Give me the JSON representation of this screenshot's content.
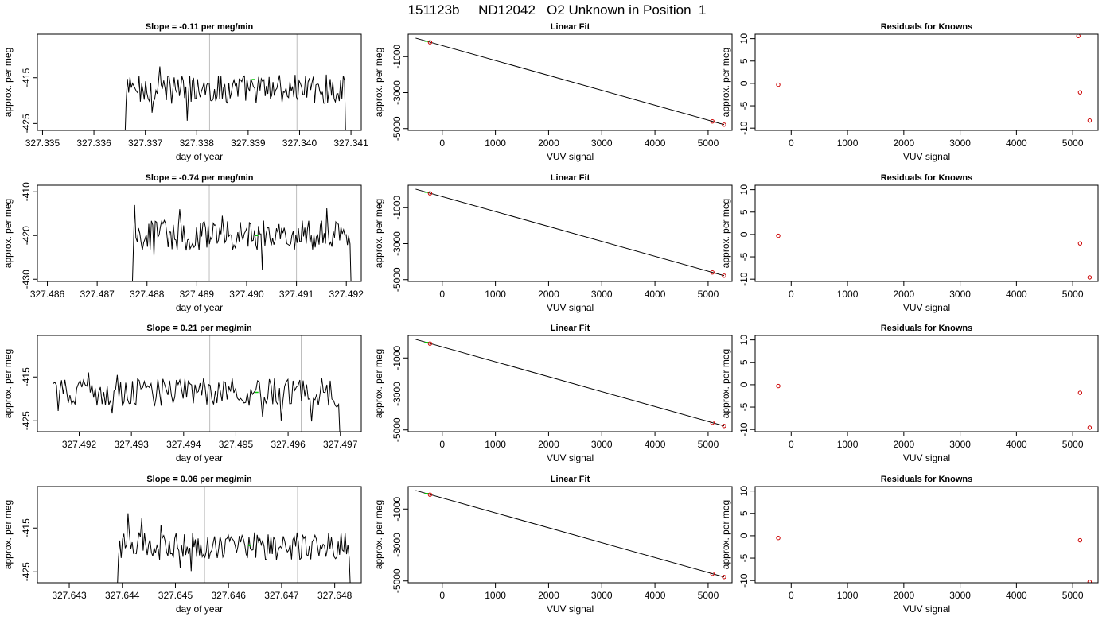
{
  "title": "151123b     ND12042   O2 Unknown in Position  1",
  "colors": {
    "line": "#000000",
    "marker_green": "#00cc00",
    "marker_red": "#cc0000",
    "vline": "#bebebe"
  },
  "chart_data": [
    {
      "type": "line",
      "row": 1,
      "title": "Slope =  -0.11  per meg/min",
      "xlabel": "day of year",
      "ylabel": "approx. per meg",
      "xlim": [
        327.3349,
        327.3412
      ],
      "xticks": [
        "327.335",
        "327.336",
        "327.337",
        "327.338",
        "327.339",
        "327.340",
        "327.341"
      ],
      "ylim": [
        -426.5,
        -405.5
      ],
      "yticks": [
        "-415",
        "-425"
      ],
      "x_start": 327.3366,
      "x_end": 327.3409,
      "baseline": -417.5,
      "amplitude": 2.0,
      "vlines": [
        327.33825,
        327.33995
      ],
      "marker": {
        "x": 327.3391,
        "y": -415.4
      }
    },
    {
      "type": "scatter",
      "row": 1,
      "title": "Linear Fit",
      "xlabel": "VUV signal",
      "ylabel": "approx. per meg",
      "xlim": [
        -640,
        5450
      ],
      "xticks": [
        "0",
        "1000",
        "2000",
        "3000",
        "4000",
        "5000"
      ],
      "ylim": [
        -5100,
        250
      ],
      "yticks": [
        "-1000",
        "-3000",
        "-5000"
      ],
      "fit": {
        "x": [
          -500,
          5300
        ],
        "y": [
          31,
          -4780
        ]
      },
      "points": [
        {
          "x": -230,
          "y": -200
        },
        {
          "x": 5080,
          "y": -4600
        },
        {
          "x": 5300,
          "y": -4780
        }
      ],
      "green_points": [
        {
          "x": -290,
          "y": -140
        }
      ]
    },
    {
      "type": "scatter",
      "row": 1,
      "title": "Residuals for Knowns",
      "xlabel": "VUV signal",
      "ylabel": "approx. per meg",
      "xlim": [
        -640,
        5450
      ],
      "xticks": [
        "0",
        "1000",
        "2000",
        "3000",
        "4000",
        "5000"
      ],
      "ylim": [
        -10.5,
        11
      ],
      "yticks": [
        "10",
        "5",
        "0",
        "-5",
        "-10"
      ],
      "points": [
        {
          "x": -230,
          "y": -0.3
        },
        {
          "x": 5100,
          "y": 10.6
        },
        {
          "x": 5130,
          "y": -2.0
        },
        {
          "x": 5300,
          "y": -8.3
        }
      ]
    },
    {
      "type": "line",
      "row": 2,
      "title": "Slope =  -0.74  per meg/min",
      "xlabel": "day of year",
      "ylabel": "approx. per meg",
      "xlim": [
        327.4858,
        327.4923
      ],
      "xticks": [
        "327.486",
        "327.487",
        "327.488",
        "327.489",
        "327.490",
        "327.491",
        "327.492"
      ],
      "ylim": [
        -430.5,
        -408.5
      ],
      "yticks": [
        "-410",
        "-420",
        "-430"
      ],
      "x_start": 327.4877,
      "x_end": 327.4921,
      "baseline": -420,
      "amplitude": 2.2,
      "vlines": [
        327.48925,
        327.491
      ],
      "marker": {
        "x": 327.4902,
        "y": -420
      }
    },
    {
      "type": "scatter",
      "row": 2,
      "title": "Linear Fit",
      "xlabel": "VUV signal",
      "ylabel": "approx. per meg",
      "xlim": [
        -640,
        5450
      ],
      "xticks": [
        "0",
        "1000",
        "2000",
        "3000",
        "4000",
        "5000"
      ],
      "ylim": [
        -5100,
        250
      ],
      "yticks": [
        "-1000",
        "-3000",
        "-5000"
      ],
      "fit": {
        "x": [
          -500,
          5300
        ],
        "y": [
          31,
          -4780
        ]
      },
      "points": [
        {
          "x": -230,
          "y": -200
        },
        {
          "x": 5080,
          "y": -4600
        },
        {
          "x": 5300,
          "y": -4780
        }
      ],
      "green_points": [
        {
          "x": -290,
          "y": -140
        }
      ]
    },
    {
      "type": "scatter",
      "row": 2,
      "title": "Residuals for Knowns",
      "xlabel": "VUV signal",
      "ylabel": "approx. per meg",
      "xlim": [
        -640,
        5450
      ],
      "xticks": [
        "0",
        "1000",
        "2000",
        "3000",
        "4000",
        "5000"
      ],
      "ylim": [
        -10.5,
        11
      ],
      "yticks": [
        "10",
        "5",
        "0",
        "-5",
        "-10"
      ],
      "points": [
        {
          "x": -230,
          "y": -0.3
        },
        {
          "x": 5130,
          "y": -2.0
        },
        {
          "x": 5300,
          "y": -9.6
        }
      ]
    },
    {
      "type": "line",
      "row": 3,
      "title": "Slope =  0.21  per meg/min",
      "xlabel": "day of year",
      "ylabel": "approx. per meg",
      "xlim": [
        327.4912,
        327.4974
      ],
      "xticks": [
        "327.492",
        "327.493",
        "327.494",
        "327.495",
        "327.496",
        "327.497"
      ],
      "ylim": [
        -427.5,
        -405.5
      ],
      "yticks": [
        "-415",
        "-425"
      ],
      "x_start": 327.4915,
      "x_end": 327.497,
      "baseline": -418.5,
      "amplitude": 2.0,
      "vlines": [
        327.4945,
        327.49625
      ],
      "marker": {
        "x": 327.4954,
        "y": -418.5
      }
    },
    {
      "type": "scatter",
      "row": 3,
      "title": "Linear Fit",
      "xlabel": "VUV signal",
      "ylabel": "approx. per meg",
      "xlim": [
        -640,
        5450
      ],
      "xticks": [
        "0",
        "1000",
        "2000",
        "3000",
        "4000",
        "5000"
      ],
      "ylim": [
        -5100,
        250
      ],
      "yticks": [
        "-1000",
        "-3000",
        "-5000"
      ],
      "fit": {
        "x": [
          -500,
          5300
        ],
        "y": [
          31,
          -4780
        ]
      },
      "points": [
        {
          "x": -230,
          "y": -200
        },
        {
          "x": 5080,
          "y": -4600
        },
        {
          "x": 5300,
          "y": -4780
        }
      ],
      "green_points": [
        {
          "x": -290,
          "y": -140
        }
      ]
    },
    {
      "type": "scatter",
      "row": 3,
      "title": "Residuals for Knowns",
      "xlabel": "VUV signal",
      "ylabel": "approx. per meg",
      "xlim": [
        -640,
        5450
      ],
      "xticks": [
        "0",
        "1000",
        "2000",
        "3000",
        "4000",
        "5000"
      ],
      "ylim": [
        -10.5,
        11
      ],
      "yticks": [
        "10",
        "5",
        "0",
        "-5",
        "-10"
      ],
      "points": [
        {
          "x": -230,
          "y": -0.3
        },
        {
          "x": 5130,
          "y": -1.8
        },
        {
          "x": 5300,
          "y": -9.6
        }
      ]
    },
    {
      "type": "line",
      "row": 4,
      "title": "Slope =  0.06  per meg/min",
      "xlabel": "day of year",
      "ylabel": "approx. per meg",
      "xlim": [
        327.6424,
        327.6485
      ],
      "xticks": [
        "327.643",
        "327.644",
        "327.645",
        "327.646",
        "327.647",
        "327.648"
      ],
      "ylim": [
        -427.5,
        -405.5
      ],
      "yticks": [
        "-415",
        "-425"
      ],
      "x_start": 327.6439,
      "x_end": 327.6483,
      "baseline": -419.2,
      "amplitude": 2.0,
      "vlines": [
        327.64555,
        327.6473
      ],
      "marker": {
        "x": 327.6464,
        "y": -419
      }
    },
    {
      "type": "scatter",
      "row": 4,
      "title": "Linear Fit",
      "xlabel": "VUV signal",
      "ylabel": "approx. per meg",
      "xlim": [
        -640,
        5450
      ],
      "xticks": [
        "0",
        "1000",
        "2000",
        "3000",
        "4000",
        "5000"
      ],
      "ylim": [
        -5100,
        250
      ],
      "yticks": [
        "-1000",
        "-3000",
        "-5000"
      ],
      "fit": {
        "x": [
          -500,
          5300
        ],
        "y": [
          31,
          -4780
        ]
      },
      "points": [
        {
          "x": -230,
          "y": -200
        },
        {
          "x": 5080,
          "y": -4600
        },
        {
          "x": 5300,
          "y": -4780
        }
      ],
      "green_points": [
        {
          "x": -290,
          "y": -140
        }
      ]
    },
    {
      "type": "scatter",
      "row": 4,
      "title": "Residuals for Knowns",
      "xlabel": "VUV signal",
      "ylabel": "approx. per meg",
      "xlim": [
        -640,
        5450
      ],
      "xticks": [
        "0",
        "1000",
        "2000",
        "3000",
        "4000",
        "5000"
      ],
      "ylim": [
        -10.5,
        11
      ],
      "yticks": [
        "10",
        "5",
        "0",
        "-5",
        "-10"
      ],
      "points": [
        {
          "x": -230,
          "y": -0.5
        },
        {
          "x": 5130,
          "y": -1.0
        },
        {
          "x": 5300,
          "y": -10.3
        }
      ]
    }
  ]
}
